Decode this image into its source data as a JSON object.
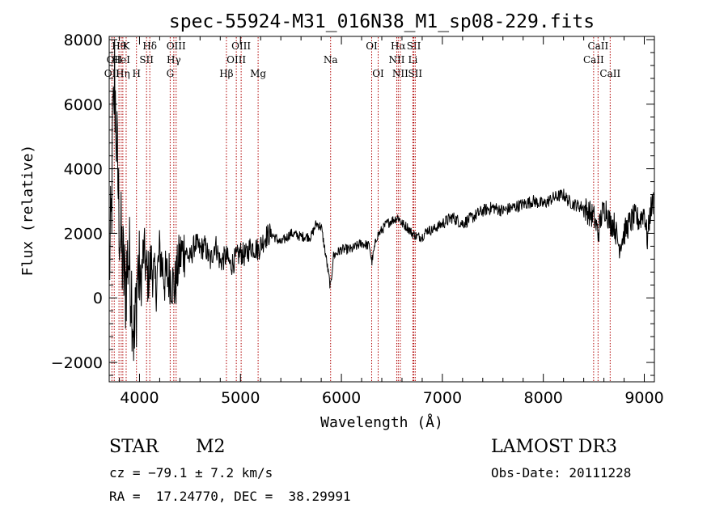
{
  "chart_data": {
    "type": "line",
    "title": "spec-55924-M31_016N38_M1_sp08-229.fits",
    "xlabel": "Wavelength (Å)",
    "ylabel": "Flux (relative)",
    "xlim": [
      3700,
      9100
    ],
    "ylim": [
      -2600,
      8100
    ],
    "xticks": [
      4000,
      5000,
      6000,
      7000,
      8000,
      9000
    ],
    "yticks": [
      -2000,
      0,
      2000,
      4000,
      6000,
      8000
    ],
    "x_tick_labels": [
      "4000",
      "5000",
      "6000",
      "7000",
      "8000",
      "9000"
    ],
    "y_tick_labels": [
      "−2000",
      "0",
      "2000",
      "4000",
      "6000",
      "8000"
    ],
    "spectrum_anchors": [
      [
        3700,
        800
      ],
      [
        3720,
        2200
      ],
      [
        3740,
        5200
      ],
      [
        3760,
        5800
      ],
      [
        3780,
        4200
      ],
      [
        3800,
        2400
      ],
      [
        3830,
        1200
      ],
      [
        3860,
        300
      ],
      [
        3890,
        1400
      ],
      [
        3920,
        400
      ],
      [
        3950,
        -1500
      ],
      [
        3980,
        900
      ],
      [
        4010,
        300
      ],
      [
        4040,
        1500
      ],
      [
        4080,
        600
      ],
      [
        4120,
        1100
      ],
      [
        4160,
        300
      ],
      [
        4200,
        1400
      ],
      [
        4250,
        600
      ],
      [
        4300,
        700
      ],
      [
        4350,
        300
      ],
      [
        4400,
        1300
      ],
      [
        4450,
        1500
      ],
      [
        4500,
        1200
      ],
      [
        4550,
        1700
      ],
      [
        4600,
        1500
      ],
      [
        4650,
        1600
      ],
      [
        4700,
        1100
      ],
      [
        4750,
        1700
      ],
      [
        4800,
        1100
      ],
      [
        4861,
        1300
      ],
      [
        4900,
        1000
      ],
      [
        4950,
        1200
      ],
      [
        5000,
        1400
      ],
      [
        5050,
        1300
      ],
      [
        5100,
        1600
      ],
      [
        5175,
        1500
      ],
      [
        5250,
        1900
      ],
      [
        5300,
        2000
      ],
      [
        5400,
        1700
      ],
      [
        5500,
        2000
      ],
      [
        5600,
        1900
      ],
      [
        5700,
        1900
      ],
      [
        5750,
        2300
      ],
      [
        5800,
        2200
      ],
      [
        5850,
        1200
      ],
      [
        5893,
        300
      ],
      [
        5920,
        1300
      ],
      [
        6000,
        1500
      ],
      [
        6100,
        1500
      ],
      [
        6200,
        1700
      ],
      [
        6280,
        1600
      ],
      [
        6300,
        1100
      ],
      [
        6350,
        1900
      ],
      [
        6400,
        2100
      ],
      [
        6450,
        2300
      ],
      [
        6500,
        2400
      ],
      [
        6563,
        2500
      ],
      [
        6600,
        2300
      ],
      [
        6650,
        2200
      ],
      [
        6700,
        2000
      ],
      [
        6750,
        1900
      ],
      [
        6800,
        1900
      ],
      [
        6850,
        2100
      ],
      [
        6900,
        2100
      ],
      [
        7000,
        2300
      ],
      [
        7050,
        2400
      ],
      [
        7100,
        2500
      ],
      [
        7150,
        2400
      ],
      [
        7200,
        2300
      ],
      [
        7300,
        2500
      ],
      [
        7400,
        2700
      ],
      [
        7500,
        2800
      ],
      [
        7600,
        2700
      ],
      [
        7700,
        2800
      ],
      [
        7800,
        2900
      ],
      [
        7900,
        3000
      ],
      [
        8000,
        2900
      ],
      [
        8100,
        3100
      ],
      [
        8200,
        3200
      ],
      [
        8250,
        3000
      ],
      [
        8300,
        2900
      ],
      [
        8400,
        2800
      ],
      [
        8500,
        2500
      ],
      [
        8542,
        2000
      ],
      [
        8580,
        2600
      ],
      [
        8620,
        2800
      ],
      [
        8662,
        2300
      ],
      [
        8700,
        2300
      ],
      [
        8750,
        1600
      ],
      [
        8800,
        2000
      ],
      [
        8850,
        2300
      ],
      [
        8900,
        2500
      ],
      [
        8950,
        2400
      ],
      [
        9000,
        2700
      ],
      [
        9030,
        1800
      ],
      [
        9060,
        2700
      ],
      [
        9090,
        3000
      ]
    ],
    "line_markers": [
      {
        "x": 3727,
        "label": "OII",
        "row": 3
      },
      {
        "x": 3750,
        "label": "OII",
        "row": 2
      },
      {
        "x": 3797,
        "label": "Hθ",
        "row": 1
      },
      {
        "x": 3819,
        "label": "HeI",
        "row": 2
      },
      {
        "x": 3835,
        "label": "Hη",
        "row": 3
      },
      {
        "x": 3868,
        "label": "K",
        "row": 1
      },
      {
        "x": 3970,
        "label": "H",
        "row": 3
      },
      {
        "x": 4070,
        "label": "SII",
        "row": 2
      },
      {
        "x": 4102,
        "label": "Hδ",
        "row": 1
      },
      {
        "x": 4304,
        "label": "G",
        "row": 3
      },
      {
        "x": 4340,
        "label": "Hγ",
        "row": 2
      },
      {
        "x": 4363,
        "label": "OIII",
        "row": 1
      },
      {
        "x": 4861,
        "label": "Hβ",
        "row": 3
      },
      {
        "x": 4959,
        "label": "OIII",
        "row": 2
      },
      {
        "x": 5007,
        "label": "OIII",
        "row": 1
      },
      {
        "x": 5175,
        "label": "Mg",
        "row": 3
      },
      {
        "x": 5893,
        "label": "Na",
        "row": 2
      },
      {
        "x": 6300,
        "label": "OI",
        "row": 1
      },
      {
        "x": 6364,
        "label": "OI",
        "row": 3
      },
      {
        "x": 6548,
        "label": "NII",
        "row": 2
      },
      {
        "x": 6563,
        "label": "Hα",
        "row": 1
      },
      {
        "x": 6583,
        "label": "NII",
        "row": 3
      },
      {
        "x": 6708,
        "label": "Li",
        "row": 2
      },
      {
        "x": 6717,
        "label": "SII",
        "row": 1
      },
      {
        "x": 6731,
        "label": "SII",
        "row": 3
      },
      {
        "x": 8498,
        "label": "CaII",
        "row": 2
      },
      {
        "x": 8542,
        "label": "CaII",
        "row": 1
      },
      {
        "x": 8662,
        "label": "CaII",
        "row": 3
      }
    ]
  },
  "info": {
    "object_class": "STAR",
    "subclass": "M2",
    "survey": "LAMOST DR3",
    "redshift": "cz = −79.1 ± 7.2 km/s",
    "obs_date": "Obs-Date: 20111228",
    "coords": "RA =  17.24770, DEC =  38.29991"
  }
}
